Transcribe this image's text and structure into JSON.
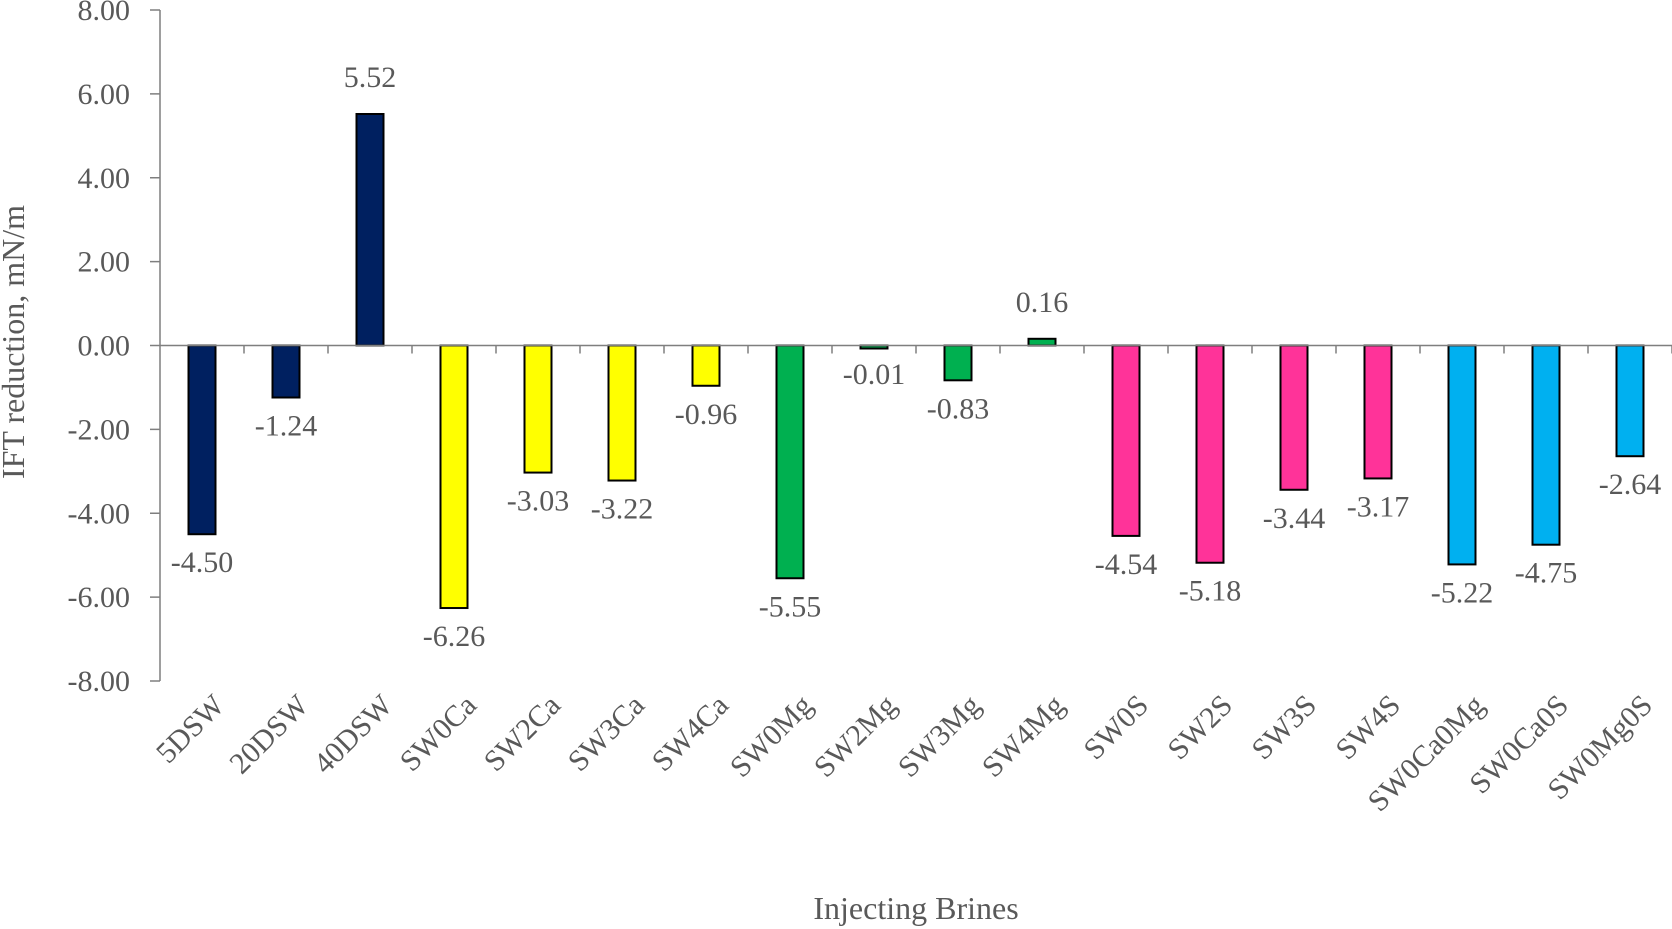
{
  "chart_data": {
    "type": "bar",
    "title": "",
    "xlabel": "Injecting Brines",
    "ylabel": "IFT reduction, mN/m",
    "ylim": [
      -8,
      8
    ],
    "ytick_step": 2,
    "yticks": [
      "8.00",
      "6.00",
      "4.00",
      "2.00",
      "0.00",
      "-2.00",
      "-4.00",
      "-6.00",
      "-8.00"
    ],
    "categories": [
      "5DSW",
      "20DSW",
      "40DSW",
      "SW0Ca",
      "SW2Ca",
      "SW3Ca",
      "SW4Ca",
      "SW0Mg",
      "SW2Mg",
      "SW3Mg",
      "SW4Mg",
      "SW0S",
      "SW2S",
      "SW3S",
      "SW4S",
      "SW0Ca0Mg",
      "SW0Ca0S",
      "SW0Mg0S"
    ],
    "values": [
      -4.5,
      -1.24,
      5.52,
      -6.26,
      -3.03,
      -3.22,
      -0.96,
      -5.55,
      -0.01,
      -0.83,
      0.16,
      -4.54,
      -5.18,
      -3.44,
      -3.17,
      -5.22,
      -4.75,
      -2.64
    ],
    "value_labels": [
      "-4.50",
      "-1.24",
      "5.52",
      "-6.26",
      "-3.03",
      "-3.22",
      "-0.96",
      "-5.55",
      "-0.01",
      "-0.83",
      "0.16",
      "-4.54",
      "-5.18",
      "-3.44",
      "-3.17",
      "-5.22",
      "-4.75",
      "-2.64"
    ],
    "colors": [
      "#002060",
      "#002060",
      "#002060",
      "#FFFF00",
      "#FFFF00",
      "#FFFF00",
      "#FFFF00",
      "#00B050",
      "#00B050",
      "#00B050",
      "#00B050",
      "#FF3399",
      "#FF3399",
      "#FF3399",
      "#FF3399",
      "#00B0F0",
      "#00B0F0",
      "#00B0F0"
    ],
    "grid": false,
    "legend": "none"
  }
}
